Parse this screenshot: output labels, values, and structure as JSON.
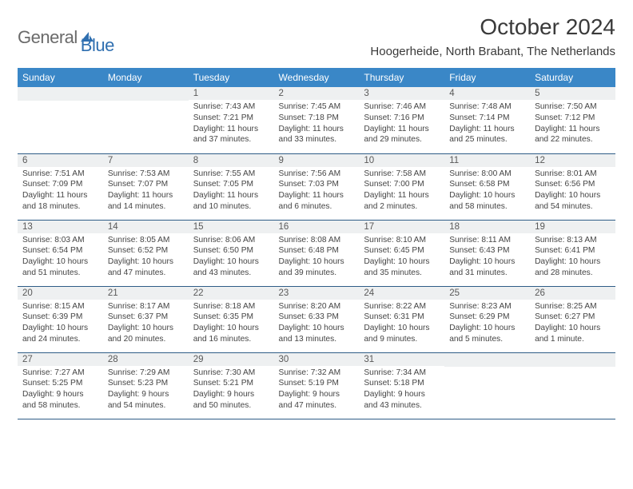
{
  "logo": {
    "word1": "General",
    "word2": "Blue"
  },
  "title": "October 2024",
  "location": "Hoogerheide, North Brabant, The Netherlands",
  "colors": {
    "header_bg": "#3a87c7",
    "header_text": "#ffffff",
    "row_border": "#2f5d87",
    "daynum_bg": "#eef0f1",
    "logo_gray": "#6a6a6a",
    "logo_blue": "#2f6fb0"
  },
  "day_headers": [
    "Sunday",
    "Monday",
    "Tuesday",
    "Wednesday",
    "Thursday",
    "Friday",
    "Saturday"
  ],
  "weeks": [
    [
      {
        "n": "",
        "lines": []
      },
      {
        "n": "",
        "lines": []
      },
      {
        "n": "1",
        "lines": [
          "Sunrise: 7:43 AM",
          "Sunset: 7:21 PM",
          "Daylight: 11 hours and 37 minutes."
        ]
      },
      {
        "n": "2",
        "lines": [
          "Sunrise: 7:45 AM",
          "Sunset: 7:18 PM",
          "Daylight: 11 hours and 33 minutes."
        ]
      },
      {
        "n": "3",
        "lines": [
          "Sunrise: 7:46 AM",
          "Sunset: 7:16 PM",
          "Daylight: 11 hours and 29 minutes."
        ]
      },
      {
        "n": "4",
        "lines": [
          "Sunrise: 7:48 AM",
          "Sunset: 7:14 PM",
          "Daylight: 11 hours and 25 minutes."
        ]
      },
      {
        "n": "5",
        "lines": [
          "Sunrise: 7:50 AM",
          "Sunset: 7:12 PM",
          "Daylight: 11 hours and 22 minutes."
        ]
      }
    ],
    [
      {
        "n": "6",
        "lines": [
          "Sunrise: 7:51 AM",
          "Sunset: 7:09 PM",
          "Daylight: 11 hours and 18 minutes."
        ]
      },
      {
        "n": "7",
        "lines": [
          "Sunrise: 7:53 AM",
          "Sunset: 7:07 PM",
          "Daylight: 11 hours and 14 minutes."
        ]
      },
      {
        "n": "8",
        "lines": [
          "Sunrise: 7:55 AM",
          "Sunset: 7:05 PM",
          "Daylight: 11 hours and 10 minutes."
        ]
      },
      {
        "n": "9",
        "lines": [
          "Sunrise: 7:56 AM",
          "Sunset: 7:03 PM",
          "Daylight: 11 hours and 6 minutes."
        ]
      },
      {
        "n": "10",
        "lines": [
          "Sunrise: 7:58 AM",
          "Sunset: 7:00 PM",
          "Daylight: 11 hours and 2 minutes."
        ]
      },
      {
        "n": "11",
        "lines": [
          "Sunrise: 8:00 AM",
          "Sunset: 6:58 PM",
          "Daylight: 10 hours and 58 minutes."
        ]
      },
      {
        "n": "12",
        "lines": [
          "Sunrise: 8:01 AM",
          "Sunset: 6:56 PM",
          "Daylight: 10 hours and 54 minutes."
        ]
      }
    ],
    [
      {
        "n": "13",
        "lines": [
          "Sunrise: 8:03 AM",
          "Sunset: 6:54 PM",
          "Daylight: 10 hours and 51 minutes."
        ]
      },
      {
        "n": "14",
        "lines": [
          "Sunrise: 8:05 AM",
          "Sunset: 6:52 PM",
          "Daylight: 10 hours and 47 minutes."
        ]
      },
      {
        "n": "15",
        "lines": [
          "Sunrise: 8:06 AM",
          "Sunset: 6:50 PM",
          "Daylight: 10 hours and 43 minutes."
        ]
      },
      {
        "n": "16",
        "lines": [
          "Sunrise: 8:08 AM",
          "Sunset: 6:48 PM",
          "Daylight: 10 hours and 39 minutes."
        ]
      },
      {
        "n": "17",
        "lines": [
          "Sunrise: 8:10 AM",
          "Sunset: 6:45 PM",
          "Daylight: 10 hours and 35 minutes."
        ]
      },
      {
        "n": "18",
        "lines": [
          "Sunrise: 8:11 AM",
          "Sunset: 6:43 PM",
          "Daylight: 10 hours and 31 minutes."
        ]
      },
      {
        "n": "19",
        "lines": [
          "Sunrise: 8:13 AM",
          "Sunset: 6:41 PM",
          "Daylight: 10 hours and 28 minutes."
        ]
      }
    ],
    [
      {
        "n": "20",
        "lines": [
          "Sunrise: 8:15 AM",
          "Sunset: 6:39 PM",
          "Daylight: 10 hours and 24 minutes."
        ]
      },
      {
        "n": "21",
        "lines": [
          "Sunrise: 8:17 AM",
          "Sunset: 6:37 PM",
          "Daylight: 10 hours and 20 minutes."
        ]
      },
      {
        "n": "22",
        "lines": [
          "Sunrise: 8:18 AM",
          "Sunset: 6:35 PM",
          "Daylight: 10 hours and 16 minutes."
        ]
      },
      {
        "n": "23",
        "lines": [
          "Sunrise: 8:20 AM",
          "Sunset: 6:33 PM",
          "Daylight: 10 hours and 13 minutes."
        ]
      },
      {
        "n": "24",
        "lines": [
          "Sunrise: 8:22 AM",
          "Sunset: 6:31 PM",
          "Daylight: 10 hours and 9 minutes."
        ]
      },
      {
        "n": "25",
        "lines": [
          "Sunrise: 8:23 AM",
          "Sunset: 6:29 PM",
          "Daylight: 10 hours and 5 minutes."
        ]
      },
      {
        "n": "26",
        "lines": [
          "Sunrise: 8:25 AM",
          "Sunset: 6:27 PM",
          "Daylight: 10 hours and 1 minute."
        ]
      }
    ],
    [
      {
        "n": "27",
        "lines": [
          "Sunrise: 7:27 AM",
          "Sunset: 5:25 PM",
          "Daylight: 9 hours and 58 minutes."
        ]
      },
      {
        "n": "28",
        "lines": [
          "Sunrise: 7:29 AM",
          "Sunset: 5:23 PM",
          "Daylight: 9 hours and 54 minutes."
        ]
      },
      {
        "n": "29",
        "lines": [
          "Sunrise: 7:30 AM",
          "Sunset: 5:21 PM",
          "Daylight: 9 hours and 50 minutes."
        ]
      },
      {
        "n": "30",
        "lines": [
          "Sunrise: 7:32 AM",
          "Sunset: 5:19 PM",
          "Daylight: 9 hours and 47 minutes."
        ]
      },
      {
        "n": "31",
        "lines": [
          "Sunrise: 7:34 AM",
          "Sunset: 5:18 PM",
          "Daylight: 9 hours and 43 minutes."
        ]
      },
      {
        "n": "",
        "lines": []
      },
      {
        "n": "",
        "lines": []
      }
    ]
  ]
}
